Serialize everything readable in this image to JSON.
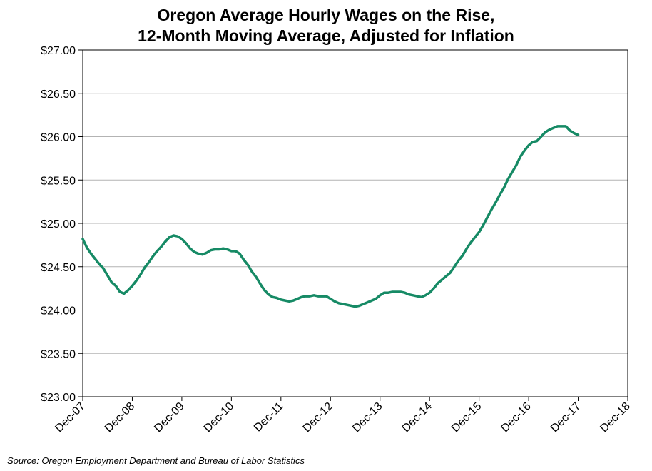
{
  "chart_data": {
    "type": "line",
    "title": "Oregon Average Hourly Wages on the Rise,",
    "subtitle": "12-Month Moving Average, Adjusted for Inflation",
    "xlabel": "",
    "ylabel": "",
    "ylim": [
      23.0,
      27.0
    ],
    "y_ticks": [
      23.0,
      23.5,
      24.0,
      24.5,
      25.0,
      25.5,
      26.0,
      26.5,
      27.0
    ],
    "y_tick_labels": [
      "$23.00",
      "$23.50",
      "$24.00",
      "$24.50",
      "$25.00",
      "$25.50",
      "$26.00",
      "$26.50",
      "$27.00"
    ],
    "x_tick_labels": [
      "Dec-07",
      "Dec-08",
      "Dec-09",
      "Dec-10",
      "Dec-11",
      "Dec-12",
      "Dec-13",
      "Dec-14",
      "Dec-15",
      "Dec-16",
      "Dec-17",
      "Dec-18"
    ],
    "x_unit": "months since Dec-07",
    "xlim": [
      0,
      132
    ],
    "grid": true,
    "series": [
      {
        "name": "Oregon Average Hourly Wage",
        "color": "#168a65",
        "points": [
          [
            0,
            24.82
          ],
          [
            1,
            24.72
          ],
          [
            2,
            24.65
          ],
          [
            3,
            24.59
          ],
          [
            4,
            24.53
          ],
          [
            5,
            24.48
          ],
          [
            6,
            24.4
          ],
          [
            7,
            24.32
          ],
          [
            8,
            24.28
          ],
          [
            9,
            24.21
          ],
          [
            10,
            24.19
          ],
          [
            11,
            24.23
          ],
          [
            12,
            24.28
          ],
          [
            13,
            24.34
          ],
          [
            14,
            24.41
          ],
          [
            15,
            24.49
          ],
          [
            16,
            24.55
          ],
          [
            17,
            24.62
          ],
          [
            18,
            24.68
          ],
          [
            19,
            24.73
          ],
          [
            20,
            24.79
          ],
          [
            21,
            24.84
          ],
          [
            22,
            24.86
          ],
          [
            23,
            24.85
          ],
          [
            24,
            24.82
          ],
          [
            25,
            24.77
          ],
          [
            26,
            24.71
          ],
          [
            27,
            24.67
          ],
          [
            28,
            24.65
          ],
          [
            29,
            24.64
          ],
          [
            30,
            24.66
          ],
          [
            31,
            24.69
          ],
          [
            32,
            24.7
          ],
          [
            33,
            24.7
          ],
          [
            34,
            24.71
          ],
          [
            35,
            24.7
          ],
          [
            36,
            24.68
          ],
          [
            37,
            24.68
          ],
          [
            38,
            24.65
          ],
          [
            39,
            24.58
          ],
          [
            40,
            24.52
          ],
          [
            41,
            24.44
          ],
          [
            42,
            24.38
          ],
          [
            43,
            24.3
          ],
          [
            44,
            24.23
          ],
          [
            45,
            24.18
          ],
          [
            46,
            24.15
          ],
          [
            47,
            24.14
          ],
          [
            48,
            24.12
          ],
          [
            49,
            24.11
          ],
          [
            50,
            24.1
          ],
          [
            51,
            24.11
          ],
          [
            52,
            24.13
          ],
          [
            53,
            24.15
          ],
          [
            54,
            24.16
          ],
          [
            55,
            24.16
          ],
          [
            56,
            24.17
          ],
          [
            57,
            24.16
          ],
          [
            58,
            24.16
          ],
          [
            59,
            24.16
          ],
          [
            60,
            24.13
          ],
          [
            61,
            24.1
          ],
          [
            62,
            24.08
          ],
          [
            63,
            24.07
          ],
          [
            64,
            24.06
          ],
          [
            65,
            24.05
          ],
          [
            66,
            24.04
          ],
          [
            67,
            24.05
          ],
          [
            68,
            24.07
          ],
          [
            69,
            24.09
          ],
          [
            70,
            24.11
          ],
          [
            71,
            24.13
          ],
          [
            72,
            24.17
          ],
          [
            73,
            24.2
          ],
          [
            74,
            24.2
          ],
          [
            75,
            24.21
          ],
          [
            76,
            24.21
          ],
          [
            77,
            24.21
          ],
          [
            78,
            24.2
          ],
          [
            79,
            24.18
          ],
          [
            80,
            24.17
          ],
          [
            81,
            24.16
          ],
          [
            82,
            24.15
          ],
          [
            83,
            24.17
          ],
          [
            84,
            24.2
          ],
          [
            85,
            24.25
          ],
          [
            86,
            24.31
          ],
          [
            87,
            24.35
          ],
          [
            88,
            24.39
          ],
          [
            89,
            24.43
          ],
          [
            90,
            24.5
          ],
          [
            91,
            24.57
          ],
          [
            92,
            24.63
          ],
          [
            93,
            24.71
          ],
          [
            94,
            24.78
          ],
          [
            95,
            24.84
          ],
          [
            96,
            24.9
          ],
          [
            97,
            24.98
          ],
          [
            98,
            25.07
          ],
          [
            99,
            25.16
          ],
          [
            100,
            25.24
          ],
          [
            101,
            25.33
          ],
          [
            102,
            25.41
          ],
          [
            103,
            25.51
          ],
          [
            104,
            25.59
          ],
          [
            105,
            25.67
          ],
          [
            106,
            25.77
          ],
          [
            107,
            25.84
          ],
          [
            108,
            25.9
          ],
          [
            109,
            25.94
          ],
          [
            110,
            25.95
          ],
          [
            111,
            26.0
          ],
          [
            112,
            26.05
          ],
          [
            113,
            26.08
          ],
          [
            114,
            26.1
          ],
          [
            115,
            26.12
          ],
          [
            116,
            26.12
          ],
          [
            117,
            26.12
          ],
          [
            118,
            26.07
          ],
          [
            119,
            26.04
          ],
          [
            120,
            26.02
          ]
        ]
      }
    ],
    "source": "Source: Oregon Employment Department and Bureau of Labor Statistics"
  }
}
